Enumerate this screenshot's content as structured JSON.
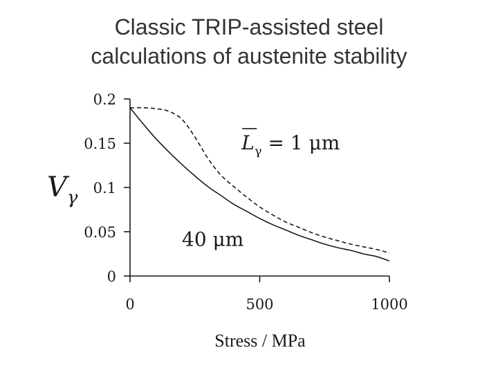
{
  "slide": {
    "title_line1": "Classic TRIP-assisted steel",
    "title_line2": "calculations of austenite stability"
  },
  "chart_data": {
    "type": "line",
    "title": "Classic TRIP-assisted steel calculations of austenite stability",
    "xlabel": "Stress / MPa",
    "ylabel_symbol": "V",
    "ylabel_subscript": "γ",
    "xlim": [
      0,
      1000
    ],
    "ylim": [
      0,
      0.2
    ],
    "x_ticks": [
      0,
      500,
      1000
    ],
    "x_tick_labels": [
      "0",
      "500",
      "1000"
    ],
    "y_ticks": [
      0,
      0.05,
      0.1,
      0.15,
      0.2
    ],
    "y_tick_labels": [
      "0",
      "0.05",
      "0.1",
      "0.15",
      "0.2"
    ],
    "grid": false,
    "series": [
      {
        "name": "1 μm",
        "style": "dashed",
        "color": "#1a1a1a",
        "x": [
          0,
          50,
          100,
          150,
          200,
          250,
          300,
          350,
          400,
          450,
          500,
          550,
          600,
          650,
          700,
          750,
          800,
          850,
          900,
          950,
          1000
        ],
        "y": [
          0.19,
          0.19,
          0.189,
          0.186,
          0.177,
          0.157,
          0.133,
          0.114,
          0.101,
          0.089,
          0.078,
          0.069,
          0.061,
          0.055,
          0.049,
          0.044,
          0.04,
          0.036,
          0.033,
          0.03,
          0.026
        ]
      },
      {
        "name": "40 μm",
        "style": "solid",
        "color": "#1a1a1a",
        "x": [
          0,
          50,
          100,
          150,
          200,
          250,
          300,
          350,
          400,
          450,
          500,
          550,
          600,
          650,
          700,
          750,
          800,
          850,
          900,
          950,
          1000
        ],
        "y": [
          0.19,
          0.172,
          0.155,
          0.14,
          0.126,
          0.113,
          0.101,
          0.091,
          0.081,
          0.073,
          0.065,
          0.058,
          0.052,
          0.046,
          0.041,
          0.036,
          0.032,
          0.029,
          0.025,
          0.022,
          0.017
        ]
      }
    ],
    "annotations": [
      {
        "symbol": "L",
        "subscript": "γ",
        "text": " = 1 μm",
        "overline": true,
        "x": 430,
        "y": 0.143
      },
      {
        "text": "40 μm",
        "x": 200,
        "y": 0.034
      }
    ]
  }
}
